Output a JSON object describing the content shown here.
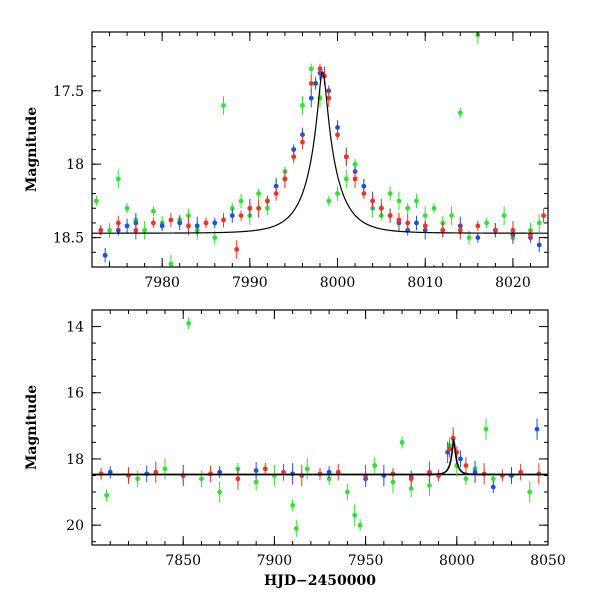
{
  "colors": {
    "green": "#33e033",
    "blue": "#1f50d8",
    "red": "#e8352a",
    "model": "#000000"
  },
  "chart_data": [
    {
      "type": "scatter",
      "panel": "top",
      "xlim": [
        7972,
        8024
      ],
      "ylim": [
        18.7,
        17.1
      ],
      "xticks": [
        7980,
        7990,
        8000,
        8010,
        8020
      ],
      "yticks": [
        17.5,
        18,
        18.5
      ],
      "xlabel": "",
      "ylabel": "Magnitude",
      "model": {
        "t0": 7998.3,
        "base": 18.47,
        "peak": 17.37,
        "tE": 3.2
      },
      "series": [
        {
          "color": "green",
          "points": [
            [
              7972.5,
              18.25
            ],
            [
              7974,
              18.45
            ],
            [
              7975,
              18.1
            ],
            [
              7976,
              18.3
            ],
            [
              7977,
              18.38
            ],
            [
              7978,
              18.45
            ],
            [
              7979,
              18.32
            ],
            [
              7980,
              18.4
            ],
            [
              7981,
              18.68
            ],
            [
              7982,
              18.38
            ],
            [
              7983,
              18.35
            ],
            [
              7984,
              18.45
            ],
            [
              7985,
              18.4
            ],
            [
              7986,
              18.5
            ],
            [
              7987,
              17.6
            ],
            [
              7988,
              18.3
            ],
            [
              7989,
              18.25
            ],
            [
              7990,
              18.35
            ],
            [
              7991,
              18.2
            ],
            [
              7992,
              18.3
            ],
            [
              7993,
              18.15
            ],
            [
              7994,
              18.05
            ],
            [
              7995,
              17.95
            ],
            [
              7996,
              17.6
            ],
            [
              7997,
              17.35
            ],
            [
              7997.5,
              17.45
            ],
            [
              7998,
              17.55
            ],
            [
              7999,
              18.25
            ],
            [
              8000,
              18.2
            ],
            [
              8001,
              18.1
            ],
            [
              8002,
              18.0
            ],
            [
              8003,
              18.15
            ],
            [
              8004,
              18.3
            ],
            [
              8005,
              18.35
            ],
            [
              8006,
              18.2
            ],
            [
              8007,
              18.25
            ],
            [
              8008,
              18.3
            ],
            [
              8009,
              18.25
            ],
            [
              8010,
              18.35
            ],
            [
              8011,
              18.3
            ],
            [
              8012,
              18.4
            ],
            [
              8013,
              18.35
            ],
            [
              8014,
              17.65
            ],
            [
              8015,
              18.5
            ],
            [
              8016,
              17.12
            ],
            [
              8017,
              18.4
            ],
            [
              8018,
              18.45
            ],
            [
              8019,
              18.35
            ],
            [
              8020,
              18.5
            ],
            [
              8022,
              18.45
            ],
            [
              8023,
              18.4
            ]
          ]
        },
        {
          "color": "blue",
          "points": [
            [
              7973,
              18.45
            ],
            [
              7973.5,
              18.62
            ],
            [
              7974,
              18.72
            ],
            [
              7975,
              18.45
            ],
            [
              7976,
              18.42
            ],
            [
              7977,
              18.4
            ],
            [
              7980,
              18.42
            ],
            [
              7982,
              18.4
            ],
            [
              7984,
              18.42
            ],
            [
              7986,
              18.4
            ],
            [
              7988,
              18.35
            ],
            [
              7990,
              18.3
            ],
            [
              7992,
              18.25
            ],
            [
              7993,
              18.15
            ],
            [
              7994,
              18.1
            ],
            [
              7995,
              17.9
            ],
            [
              7996,
              17.8
            ],
            [
              7997,
              17.55
            ],
            [
              7997.5,
              17.45
            ],
            [
              7998,
              17.38
            ],
            [
              7998.5,
              17.4
            ],
            [
              7999,
              17.5
            ],
            [
              8000,
              17.75
            ],
            [
              8001,
              17.95
            ],
            [
              8002,
              18.05
            ],
            [
              8003,
              18.15
            ],
            [
              8004,
              18.25
            ],
            [
              8005,
              18.3
            ],
            [
              8006,
              18.35
            ],
            [
              8007,
              18.4
            ],
            [
              8008,
              18.45
            ],
            [
              8009,
              18.4
            ],
            [
              8010,
              18.45
            ],
            [
              8011,
              18.72
            ],
            [
              8012,
              18.45
            ],
            [
              8014,
              18.42
            ],
            [
              8016,
              18.5
            ],
            [
              8018,
              18.45
            ],
            [
              8020,
              18.48
            ],
            [
              8022,
              18.5
            ],
            [
              8023,
              18.55
            ]
          ]
        },
        {
          "color": "red",
          "points": [
            [
              7973,
              18.45
            ],
            [
              7975,
              18.4
            ],
            [
              7977,
              18.45
            ],
            [
              7979,
              18.4
            ],
            [
              7981,
              18.38
            ],
            [
              7983,
              18.42
            ],
            [
              7985,
              18.4
            ],
            [
              7987,
              18.38
            ],
            [
              7988.5,
              18.58
            ],
            [
              7989,
              18.35
            ],
            [
              7990,
              18.3
            ],
            [
              7991,
              18.3
            ],
            [
              7992,
              18.25
            ],
            [
              7993,
              18.2
            ],
            [
              7994,
              18.1
            ],
            [
              7995,
              17.95
            ],
            [
              7996,
              17.85
            ],
            [
              7997,
              17.45
            ],
            [
              7998,
              17.35
            ],
            [
              7998.5,
              17.4
            ],
            [
              7999,
              17.55
            ],
            [
              8000,
              17.8
            ],
            [
              8001,
              17.95
            ],
            [
              8002,
              18.1
            ],
            [
              8003,
              18.2
            ],
            [
              8004,
              18.25
            ],
            [
              8005,
              18.3
            ],
            [
              8006,
              18.35
            ],
            [
              8007,
              18.38
            ],
            [
              8008,
              18.4
            ],
            [
              8010,
              18.42
            ],
            [
              8012,
              18.45
            ],
            [
              8014,
              18.45
            ],
            [
              8016,
              18.42
            ],
            [
              8018,
              18.45
            ],
            [
              8020,
              18.45
            ],
            [
              8022,
              18.48
            ],
            [
              8023.5,
              18.35
            ]
          ]
        }
      ]
    },
    {
      "type": "scatter",
      "panel": "bottom",
      "xlim": [
        7800,
        8050
      ],
      "ylim": [
        20.6,
        13.5
      ],
      "xticks": [
        7850,
        7900,
        7950,
        8000,
        8050
      ],
      "yticks": [
        14,
        16,
        18,
        20
      ],
      "xlabel": "HJD−2450000",
      "ylabel": "Magnitude",
      "baseline": 18.47,
      "model": {
        "t0": 7998.3,
        "base": 18.47,
        "peak": 17.37,
        "tE": 3.2
      },
      "series": [
        {
          "color": "green",
          "points": [
            [
              7808,
              19.1
            ],
            [
              7825,
              18.6
            ],
            [
              7840,
              18.3
            ],
            [
              7853,
              13.9
            ],
            [
              7860,
              18.6
            ],
            [
              7870,
              19.0
            ],
            [
              7880,
              18.3
            ],
            [
              7890,
              18.7
            ],
            [
              7900,
              18.5
            ],
            [
              7910,
              19.4
            ],
            [
              7912,
              20.1
            ],
            [
              7918,
              18.3
            ],
            [
              7930,
              18.6
            ],
            [
              7940,
              19.0
            ],
            [
              7944,
              19.7
            ],
            [
              7947,
              20.0
            ],
            [
              7955,
              18.2
            ],
            [
              7965,
              18.7
            ],
            [
              7970,
              17.5
            ],
            [
              7975,
              18.9
            ],
            [
              7985,
              18.8
            ],
            [
              7990,
              18.5
            ],
            [
              7996,
              17.6
            ],
            [
              8000,
              18.2
            ],
            [
              8005,
              18.6
            ],
            [
              8010,
              18.3
            ],
            [
              8016,
              17.1
            ],
            [
              8020,
              18.6
            ],
            [
              8030,
              18.5
            ],
            [
              8040,
              19.0
            ]
          ]
        },
        {
          "color": "blue",
          "points": [
            [
              7810,
              18.4
            ],
            [
              7830,
              18.45
            ],
            [
              7850,
              18.5
            ],
            [
              7870,
              18.4
            ],
            [
              7890,
              18.35
            ],
            [
              7910,
              18.45
            ],
            [
              7930,
              18.4
            ],
            [
              7950,
              18.6
            ],
            [
              7960,
              18.5
            ],
            [
              7975,
              18.55
            ],
            [
              7985,
              18.45
            ],
            [
              7995,
              17.8
            ],
            [
              7998,
              17.38
            ],
            [
              8002,
              18.0
            ],
            [
              8010,
              18.4
            ],
            [
              8020,
              18.85
            ],
            [
              8030,
              18.5
            ],
            [
              8044,
              17.1
            ]
          ]
        },
        {
          "color": "red",
          "points": [
            [
              7805,
              18.45
            ],
            [
              7820,
              18.5
            ],
            [
              7835,
              18.4
            ],
            [
              7850,
              18.5
            ],
            [
              7865,
              18.45
            ],
            [
              7880,
              18.6
            ],
            [
              7895,
              18.3
            ],
            [
              7905,
              18.4
            ],
            [
              7915,
              18.5
            ],
            [
              7925,
              18.45
            ],
            [
              7935,
              18.4
            ],
            [
              7950,
              18.5
            ],
            [
              7965,
              18.45
            ],
            [
              7975,
              18.6
            ],
            [
              7985,
              18.4
            ],
            [
              7990,
              18.5
            ],
            [
              7996,
              17.7
            ],
            [
              7998,
              17.37
            ],
            [
              8000,
              17.8
            ],
            [
              8005,
              18.2
            ],
            [
              8015,
              18.45
            ],
            [
              8025,
              18.5
            ],
            [
              8035,
              18.4
            ],
            [
              8045,
              18.45
            ]
          ]
        }
      ]
    }
  ]
}
